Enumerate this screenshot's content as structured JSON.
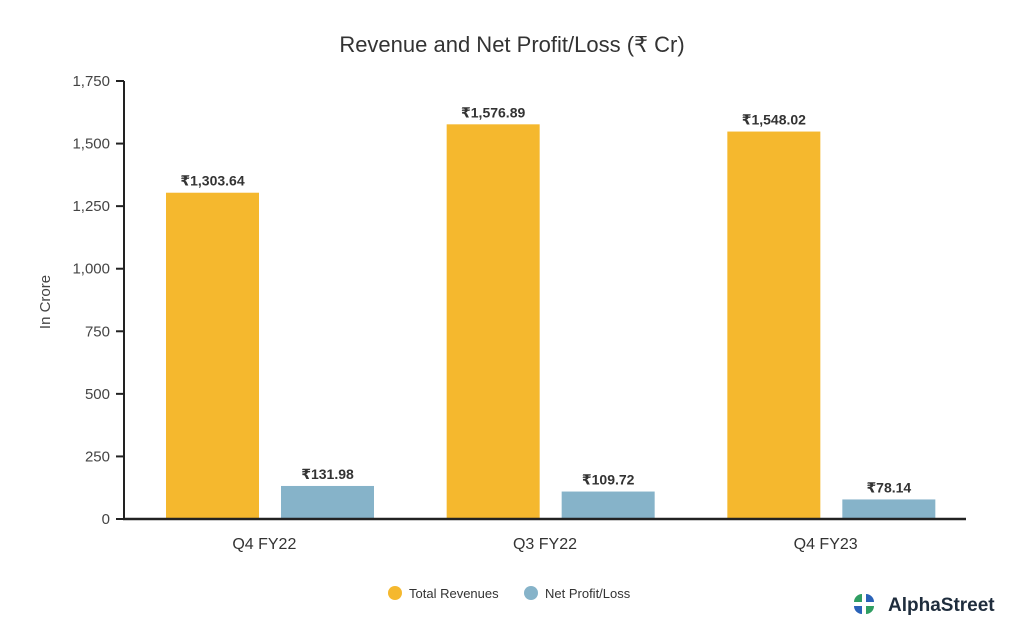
{
  "chart_data": {
    "type": "bar",
    "title": "Revenue and Net Profit/Loss (₹ Cr)",
    "xlabel": "",
    "ylabel": "In Crore",
    "categories": [
      "Q4 FY22",
      "Q3 FY22",
      "Q4 FY23"
    ],
    "series": [
      {
        "name": "Total Revenues",
        "values": [
          1303.64,
          1576.89,
          1548.02
        ],
        "labels": [
          "₹1,303.64",
          "₹1,576.89",
          "₹1,548.02"
        ],
        "color": "#f5b82e"
      },
      {
        "name": "Net Profit/Loss",
        "values": [
          131.98,
          109.72,
          78.14
        ],
        "labels": [
          "₹131.98",
          "₹109.72",
          "₹78.14"
        ],
        "color": "#86b3c9"
      }
    ],
    "ylim": [
      0,
      1750
    ],
    "yticks": [
      0,
      250,
      500,
      750,
      1000,
      1250,
      1500,
      1750
    ],
    "ytick_labels": [
      "0",
      "250",
      "500",
      "750",
      "1,000",
      "1,250",
      "1,500",
      "1,750"
    ],
    "grid": false,
    "legend_position": "bottom-center"
  },
  "brand": {
    "name": "AlphaStreet",
    "colors": [
      "#2f9e62",
      "#2a62b8"
    ]
  }
}
